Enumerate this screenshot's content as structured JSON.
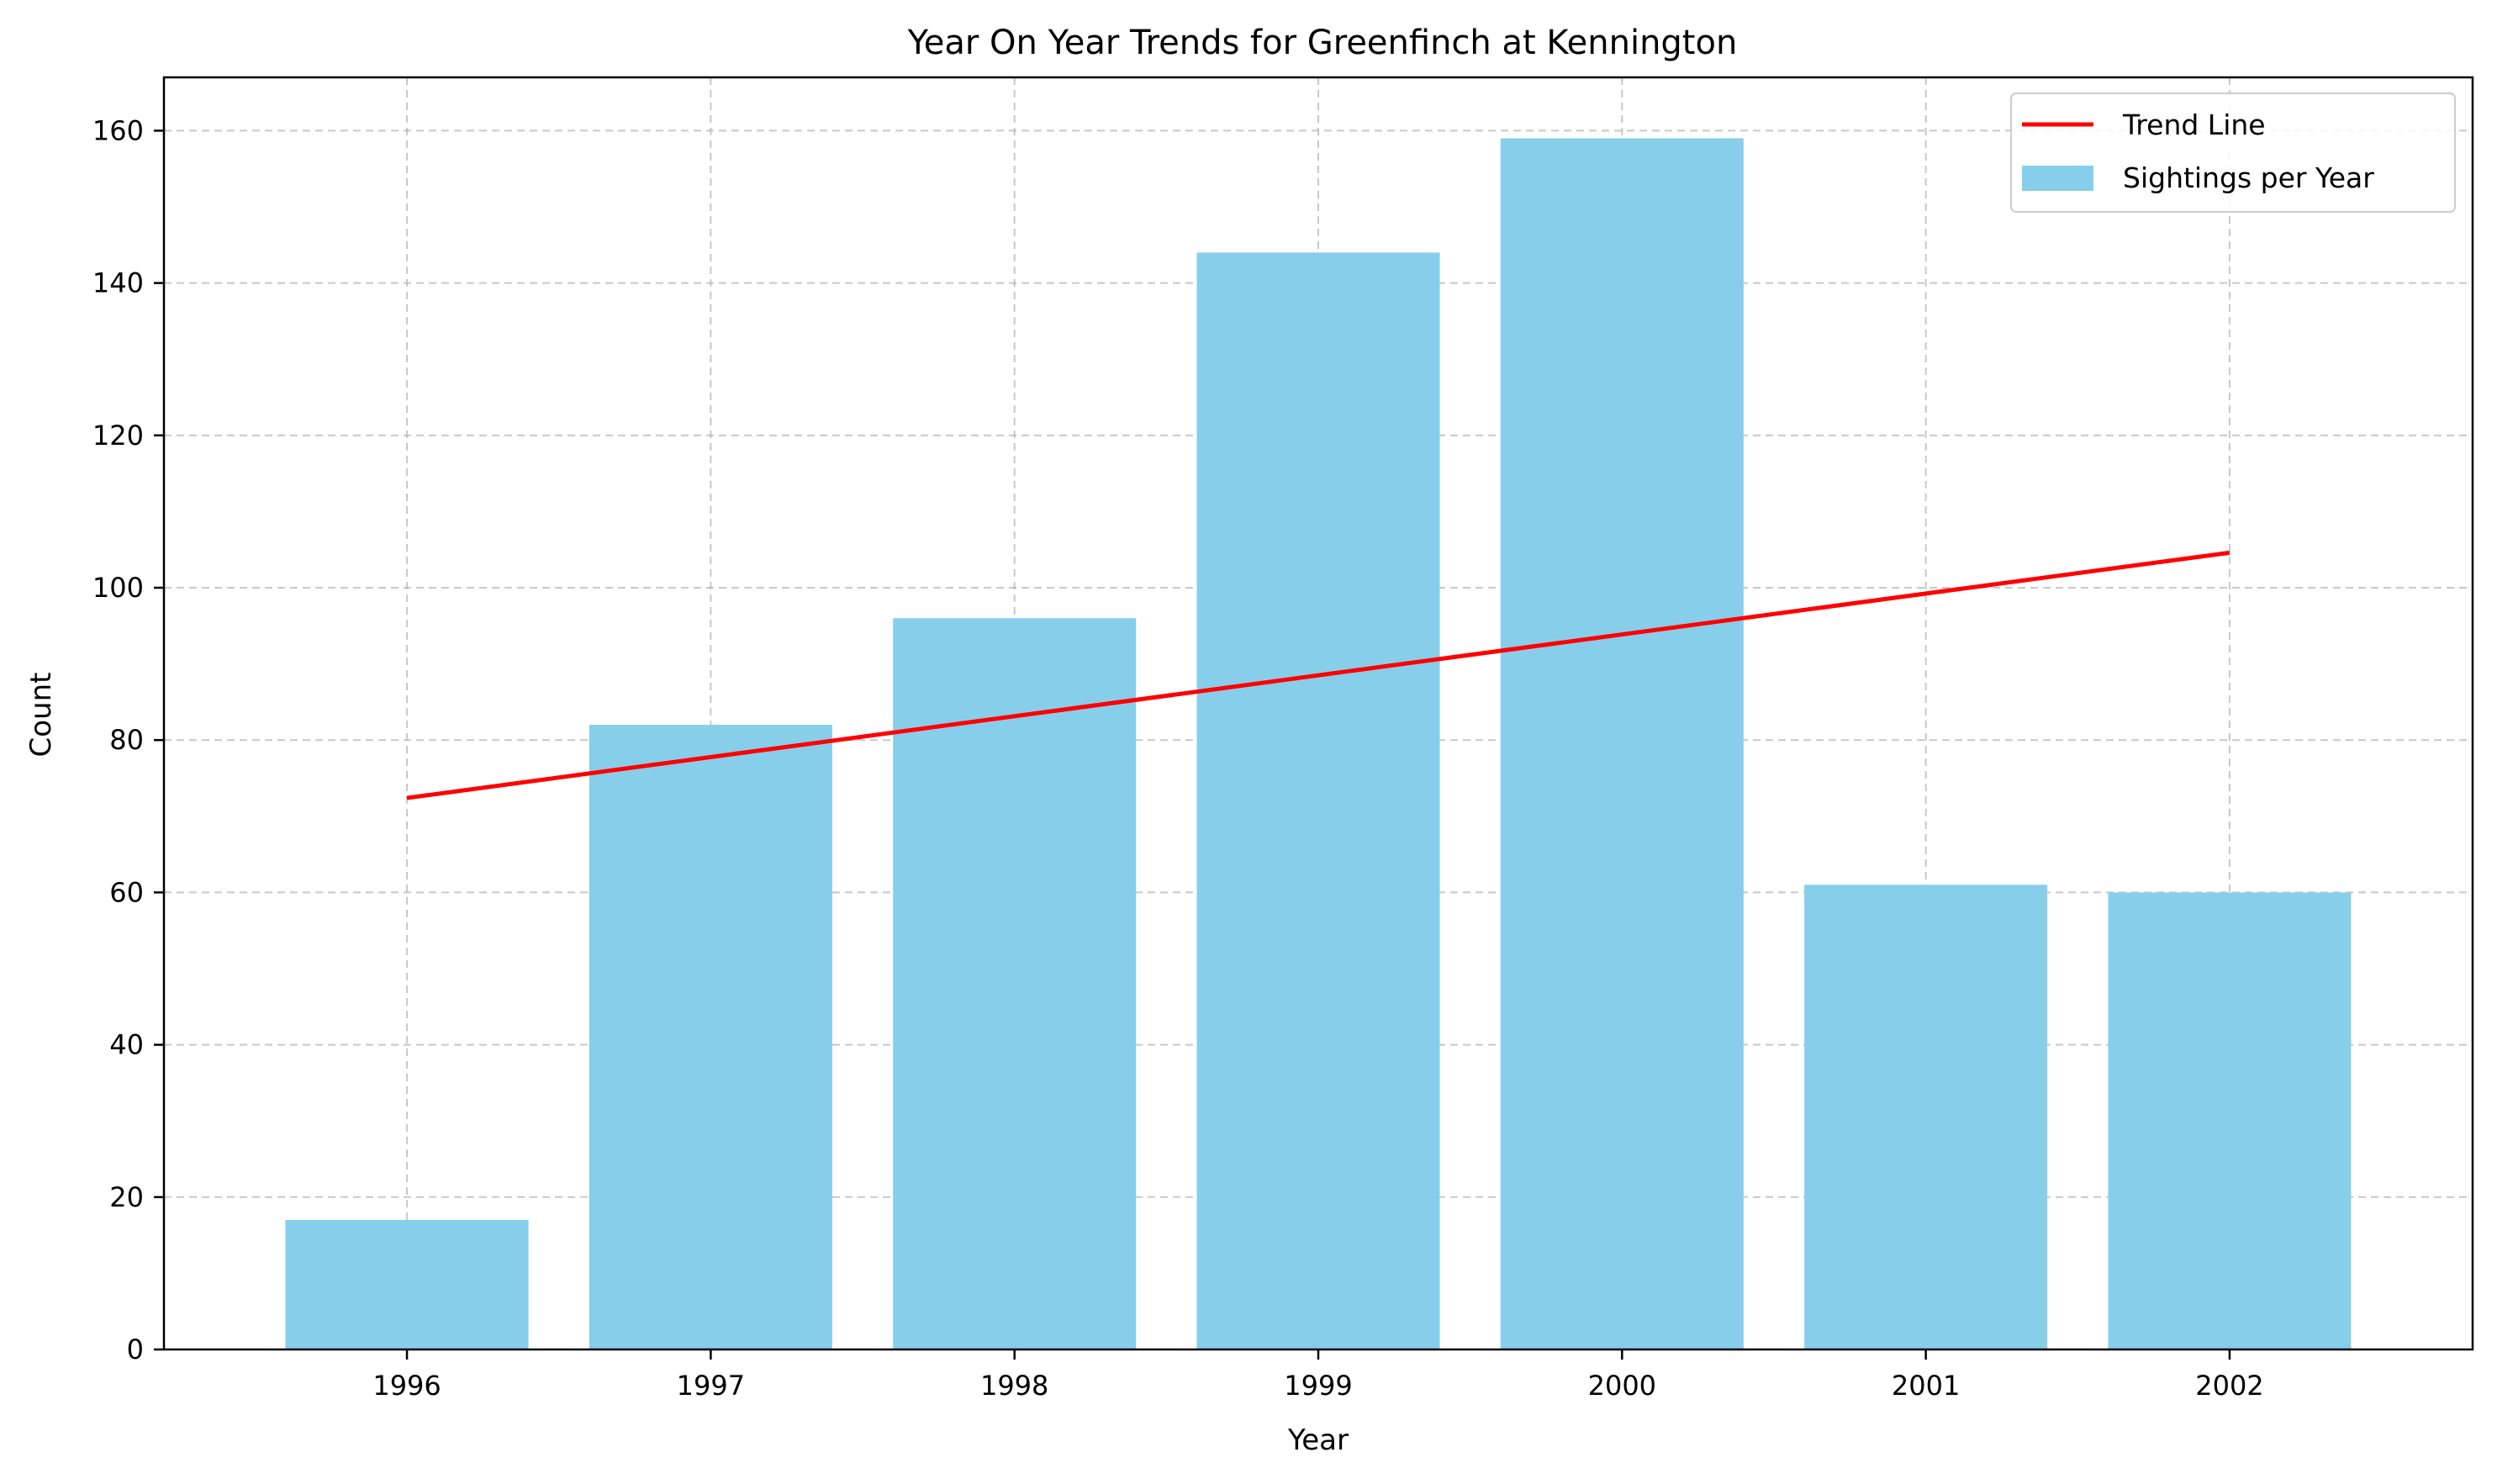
{
  "chart_data": {
    "type": "bar",
    "title": "Year On Year Trends for Greenfinch at Kennington",
    "xlabel": "Year",
    "ylabel": "Count",
    "categories": [
      "1996",
      "1997",
      "1998",
      "1999",
      "2000",
      "2001",
      "2002"
    ],
    "series": [
      {
        "name": "Sightings per Year",
        "type": "bar",
        "color": "#87CEEB",
        "values": [
          17,
          82,
          96,
          144,
          159,
          61,
          60
        ]
      },
      {
        "name": "Trend Line",
        "type": "line",
        "color": "#FF0000",
        "x": [
          "1996",
          "2002"
        ],
        "values": [
          72.4,
          104.6
        ]
      }
    ],
    "ylim": [
      0,
      167
    ],
    "yticks": [
      0,
      20,
      40,
      60,
      80,
      100,
      120,
      140,
      160
    ],
    "grid": true,
    "legend_position": "top-right"
  }
}
